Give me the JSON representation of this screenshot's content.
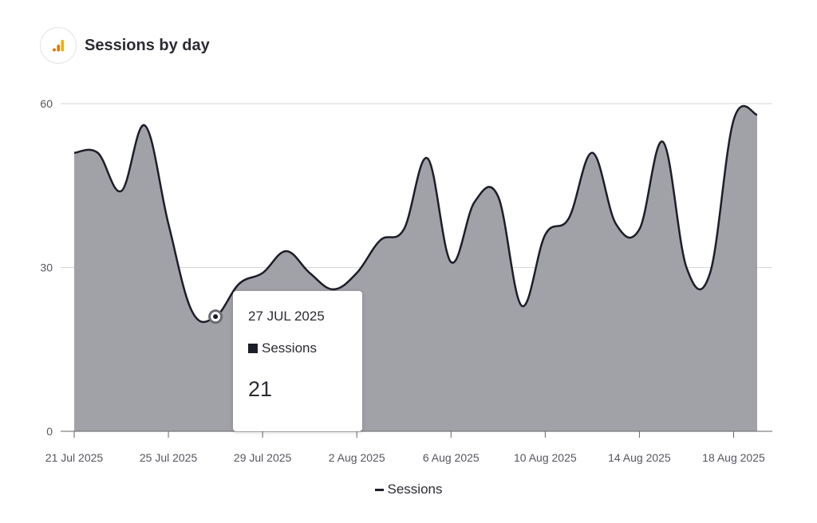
{
  "header": {
    "title": "Sessions by day",
    "icon": "analytics-bar-icon"
  },
  "chart_data": {
    "type": "area",
    "title": "Sessions by day",
    "x": [
      "21 Jul 2025",
      "22 Jul 2025",
      "23 Jul 2025",
      "24 Jul 2025",
      "25 Jul 2025",
      "26 Jul 2025",
      "27 Jul 2025",
      "28 Jul 2025",
      "29 Jul 2025",
      "30 Jul 2025",
      "31 Jul 2025",
      "1 Aug 2025",
      "2 Aug 2025",
      "3 Aug 2025",
      "4 Aug 2025",
      "5 Aug 2025",
      "6 Aug 2025",
      "7 Aug 2025",
      "8 Aug 2025",
      "9 Aug 2025",
      "10 Aug 2025",
      "11 Aug 2025",
      "12 Aug 2025",
      "13 Aug 2025",
      "14 Aug 2025",
      "15 Aug 2025",
      "16 Aug 2025",
      "17 Aug 2025",
      "18 Aug 2025",
      "19 Aug 2025"
    ],
    "series": [
      {
        "name": "Sessions",
        "values": [
          51,
          51,
          44,
          56,
          38,
          22,
          21,
          27,
          29,
          33,
          29,
          26,
          29,
          35,
          37,
          50,
          31,
          42,
          43,
          23,
          36,
          39,
          51,
          38,
          37,
          53,
          30,
          29,
          57,
          58
        ]
      }
    ],
    "x_tick_labels": [
      "21 Jul 2025",
      "25 Jul 2025",
      "29 Jul 2025",
      "2 Aug 2025",
      "6 Aug 2025",
      "10 Aug 2025",
      "14 Aug 2025",
      "18 Aug 2025"
    ],
    "y_ticks": [
      0,
      30,
      60
    ],
    "ylim": [
      0,
      60
    ],
    "grid": true,
    "legend": "bottom-center",
    "colors": {
      "area": "#a1a1a8",
      "line": "#1d1d29"
    }
  },
  "tooltip": {
    "date": "27 JUL 2025",
    "series": "Sessions",
    "value": "21"
  },
  "legend": {
    "label": "Sessions"
  }
}
